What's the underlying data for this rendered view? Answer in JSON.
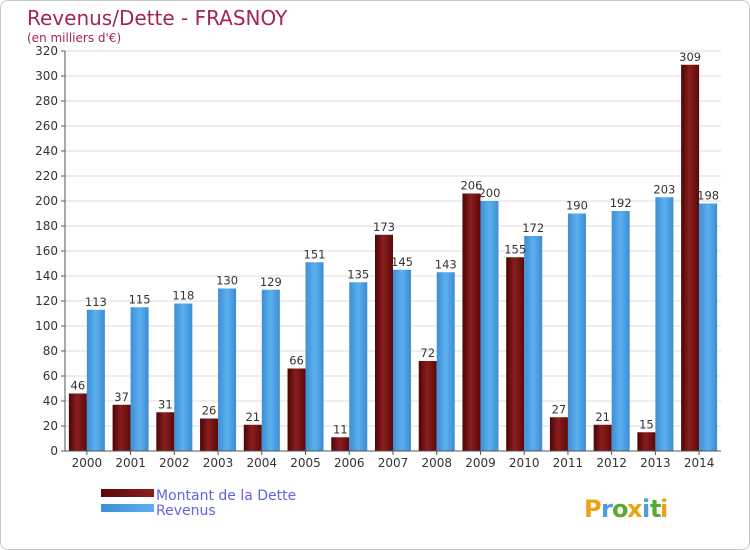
{
  "chart_data": {
    "type": "bar",
    "title": "Revenus/Dette - FRASNOY",
    "subtitle": "(en milliers d'€)",
    "categories": [
      "2000",
      "2001",
      "2002",
      "2003",
      "2004",
      "2005",
      "2006",
      "2007",
      "2008",
      "2009",
      "2010",
      "2011",
      "2012",
      "2013",
      "2014"
    ],
    "series": [
      {
        "name": "Montant de la Dette",
        "color": "#7a1414",
        "values": [
          46,
          37,
          31,
          26,
          21,
          66,
          11,
          173,
          72,
          206,
          155,
          27,
          21,
          15,
          309
        ]
      },
      {
        "name": "Revenus",
        "color": "#4a9fe0",
        "values": [
          113,
          115,
          118,
          130,
          129,
          151,
          135,
          145,
          143,
          200,
          172,
          190,
          192,
          203,
          198
        ]
      }
    ],
    "yticks": [
      0,
      20,
      40,
      60,
      80,
      100,
      120,
      140,
      160,
      180,
      200,
      220,
      240,
      260,
      280,
      300,
      320
    ],
    "ylim": [
      0,
      320
    ],
    "grid": true,
    "legend": "bottom-left"
  },
  "logo": {
    "text": "Proxiti",
    "letters": [
      "P",
      "r",
      "o",
      "x",
      "i",
      "t",
      "i"
    ],
    "colors": [
      "#e8a317",
      "#4a9fe0",
      "#5aaa32",
      "#e8a317",
      "#4a9fe0",
      "#5aaa32",
      "#e8a317"
    ]
  }
}
